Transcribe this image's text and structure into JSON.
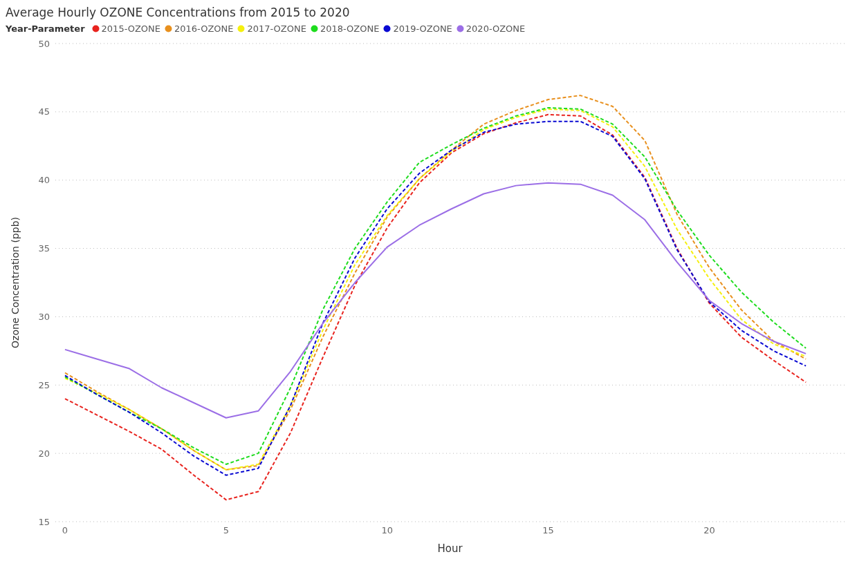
{
  "chart_data": {
    "type": "line",
    "title": "Average Hourly OZONE Concentrations from 2015 to 2020",
    "legend_title": "Year-Parameter",
    "xlabel": "Hour",
    "ylabel": "Ozone Concentration (ppb)",
    "x": [
      0,
      1,
      2,
      3,
      4,
      5,
      6,
      7,
      8,
      9,
      10,
      11,
      12,
      13,
      14,
      15,
      16,
      17,
      18,
      19,
      20,
      21,
      22,
      23
    ],
    "series": [
      {
        "name": "2015-OZONE",
        "color": "#e8231e",
        "line_style": "dashed",
        "values": [
          24.0,
          22.8,
          21.6,
          20.3,
          18.4,
          16.6,
          17.2,
          21.5,
          27.0,
          32.3,
          36.5,
          39.8,
          42.0,
          43.4,
          44.2,
          44.8,
          44.7,
          43.3,
          40.2,
          35.0,
          31.0,
          28.5,
          26.8,
          25.2
        ]
      },
      {
        "name": "2016-OZONE",
        "color": "#e8901e",
        "line_style": "dashed",
        "values": [
          25.9,
          24.5,
          23.2,
          21.8,
          20.2,
          18.8,
          19.1,
          23.2,
          28.5,
          33.2,
          37.3,
          40.1,
          42.2,
          44.1,
          45.1,
          45.9,
          46.2,
          45.4,
          42.9,
          37.5,
          33.6,
          30.5,
          28.2,
          26.9
        ]
      },
      {
        "name": "2017-OZONE",
        "color": "#f5f00f",
        "line_style": "dashed",
        "values": [
          25.5,
          24.4,
          23.2,
          21.8,
          20.2,
          18.8,
          19.2,
          23.5,
          29.0,
          33.8,
          37.4,
          40.1,
          42.1,
          43.7,
          44.6,
          45.2,
          45.1,
          43.9,
          41.0,
          36.4,
          32.8,
          29.8,
          28.0,
          27.1
        ]
      },
      {
        "name": "2018-OZONE",
        "color": "#1edc1e",
        "line_style": "dashed",
        "values": [
          25.6,
          24.3,
          23.0,
          21.8,
          20.4,
          19.2,
          20.0,
          24.8,
          30.5,
          35.0,
          38.4,
          41.3,
          42.6,
          43.8,
          44.7,
          45.3,
          45.2,
          44.1,
          41.7,
          37.8,
          34.5,
          31.8,
          29.6,
          27.7
        ]
      },
      {
        "name": "2019-OZONE",
        "color": "#0a0ad2",
        "line_style": "dashed",
        "values": [
          25.7,
          24.3,
          23.0,
          21.5,
          19.8,
          18.4,
          18.9,
          23.5,
          29.5,
          34.3,
          37.9,
          40.5,
          42.2,
          43.5,
          44.1,
          44.3,
          44.3,
          43.2,
          40.1,
          34.9,
          31.1,
          29.0,
          27.5,
          26.4
        ]
      },
      {
        "name": "2020-OZONE",
        "color": "#9b6ee6",
        "line_style": "solid",
        "values": [
          27.6,
          26.9,
          26.2,
          24.8,
          23.7,
          22.6,
          23.1,
          26.0,
          29.5,
          32.5,
          35.1,
          36.7,
          37.9,
          39.0,
          39.6,
          39.8,
          39.7,
          38.9,
          37.1,
          34.0,
          31.2,
          29.5,
          28.2,
          27.3
        ]
      }
    ],
    "xlim": [
      -0.3,
      24.2
    ],
    "xticks": [
      0,
      5,
      10,
      15,
      20
    ],
    "ylim": [
      15,
      50
    ],
    "yticks": [
      15,
      20,
      25,
      30,
      35,
      40,
      45,
      50
    ],
    "grid": "y",
    "legend": "top left",
    "marker": "none"
  }
}
